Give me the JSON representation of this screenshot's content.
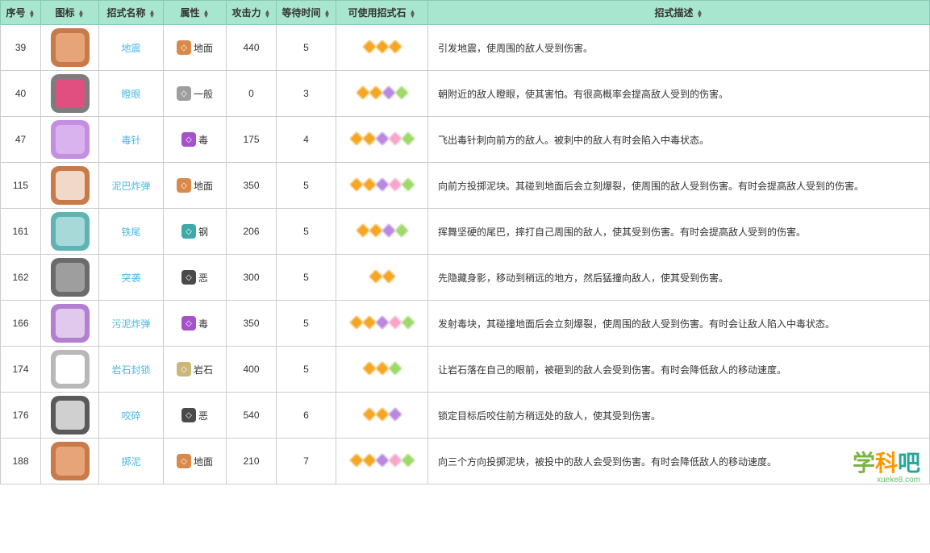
{
  "headers": {
    "num": "序号",
    "icon": "图标",
    "name": "招式名称",
    "attr": "属性",
    "atk": "攻击力",
    "wait": "等待时间",
    "stones": "可使用招式石",
    "desc": "招式描述"
  },
  "stone_colors": {
    "orange": "#f5a623",
    "purple": "#b988e0",
    "pink": "#f7a6c9",
    "green": "#9fd86b"
  },
  "attr_types": {
    "ground": {
      "label": "地面",
      "color": "#d98a4a"
    },
    "normal": {
      "label": "一般",
      "color": "#9e9e9e"
    },
    "poison": {
      "label": "毒",
      "color": "#a652c9"
    },
    "steel": {
      "label": "钢",
      "color": "#3fa9a9"
    },
    "dark": {
      "label": "恶",
      "color": "#4a4a4a"
    },
    "rock": {
      "label": "岩石",
      "color": "#c9b87a"
    }
  },
  "icon_styles": {
    "i39": {
      "bg": "#c97a4a",
      "inner": "#e6a478"
    },
    "i40": {
      "bg": "#7d7d7d",
      "inner": "#e04f7f"
    },
    "i47": {
      "bg": "#c48fe0",
      "inner": "#d9b3ed"
    },
    "i115": {
      "bg": "#c97a4a",
      "inner": "#f0d9c9"
    },
    "i161": {
      "bg": "#5fb3b3",
      "inner": "#a8d9d9"
    },
    "i162": {
      "bg": "#6b6b6b",
      "inner": "#9e9e9e"
    },
    "i166": {
      "bg": "#b37fd1",
      "inner": "#e0c9ed"
    },
    "i174": {
      "bg": "#b8b8b8",
      "inner": "#ffffff"
    },
    "i176": {
      "bg": "#5a5a5a",
      "inner": "#d0d0d0"
    },
    "i188": {
      "bg": "#c97a4a",
      "inner": "#e6a478"
    }
  },
  "rows": [
    {
      "num": 39,
      "icon": "i39",
      "name": "地震",
      "attr": "ground",
      "atk": 440,
      "wait": 5,
      "stones": [
        "orange",
        "orange",
        "orange"
      ],
      "desc": "引发地震，使周围的敌人受到伤害。"
    },
    {
      "num": 40,
      "icon": "i40",
      "name": "瞪眼",
      "attr": "normal",
      "atk": 0,
      "wait": 3,
      "stones": [
        "orange",
        "orange",
        "purple",
        "green"
      ],
      "desc": "朝附近的敌人瞪眼，使其害怕。有很高概率会提高敌人受到的伤害。"
    },
    {
      "num": 47,
      "icon": "i47",
      "name": "毒针",
      "attr": "poison",
      "atk": 175,
      "wait": 4,
      "stones": [
        "orange",
        "orange",
        "purple",
        "pink",
        "green"
      ],
      "desc": "飞出毒针刺向前方的敌人。被刺中的敌人有时会陷入中毒状态。"
    },
    {
      "num": 115,
      "icon": "i115",
      "name": "泥巴炸弹",
      "attr": "ground",
      "atk": 350,
      "wait": 5,
      "stones": [
        "orange",
        "orange",
        "purple",
        "pink",
        "green"
      ],
      "desc": "向前方投掷泥块。其碰到地面后会立刻爆裂，使周围的敌人受到伤害。有时会提高敌人受到的伤害。"
    },
    {
      "num": 161,
      "icon": "i161",
      "name": "铁尾",
      "attr": "steel",
      "atk": 206,
      "wait": 5,
      "stones": [
        "orange",
        "orange",
        "purple",
        "green"
      ],
      "desc": "挥舞坚硬的尾巴，摔打自己周围的敌人，使其受到伤害。有时会提高敌人受到的伤害。"
    },
    {
      "num": 162,
      "icon": "i162",
      "name": "突袭",
      "attr": "dark",
      "atk": 300,
      "wait": 5,
      "stones": [
        "orange",
        "orange"
      ],
      "desc": "先隐藏身影，移动到稍远的地方，然后猛撞向敌人，使其受到伤害。"
    },
    {
      "num": 166,
      "icon": "i166",
      "name": "污泥炸弹",
      "attr": "poison",
      "atk": 350,
      "wait": 5,
      "stones": [
        "orange",
        "orange",
        "purple",
        "pink",
        "green"
      ],
      "desc": "发射毒块，其碰撞地面后会立刻爆裂，使周围的敌人受到伤害。有时会让敌人陷入中毒状态。"
    },
    {
      "num": 174,
      "icon": "i174",
      "name": "岩石封锁",
      "attr": "rock",
      "atk": 400,
      "wait": 5,
      "stones": [
        "orange",
        "orange",
        "green"
      ],
      "desc": "让岩石落在自己的眼前，被砸到的敌人会受到伤害。有时会降低敌人的移动速度。"
    },
    {
      "num": 176,
      "icon": "i176",
      "name": "咬碎",
      "attr": "dark",
      "atk": 540,
      "wait": 6,
      "stones": [
        "orange",
        "orange",
        "purple"
      ],
      "desc": "锁定目标后咬住前方稍远处的敌人，使其受到伤害。"
    },
    {
      "num": 188,
      "icon": "i188",
      "name": "掷泥",
      "attr": "ground",
      "atk": 210,
      "wait": 7,
      "stones": [
        "orange",
        "orange",
        "purple",
        "pink",
        "green"
      ],
      "desc": "向三个方向投掷泥块，被投中的敌人会受到伤害。有时会降低敌人的移动速度。"
    }
  ],
  "watermark": {
    "t1": "学",
    "t2": "科",
    "t3": "吧",
    "url": "xueke8.com"
  }
}
